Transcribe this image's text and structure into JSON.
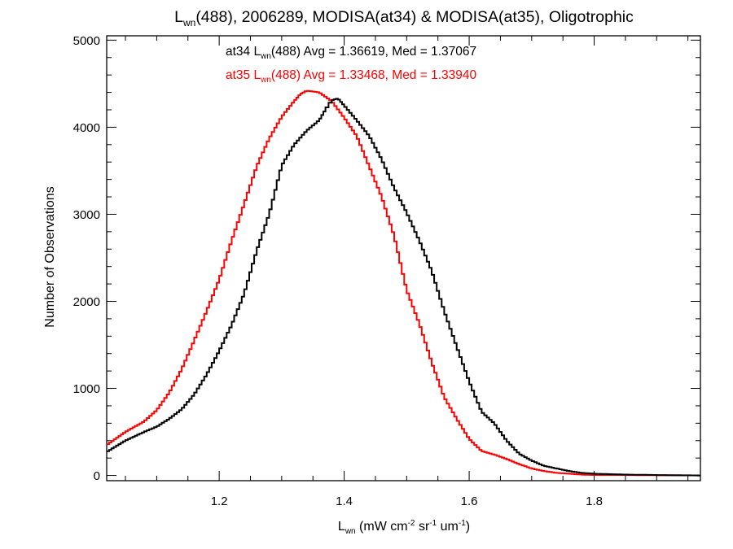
{
  "chart_data": {
    "type": "line",
    "title": {
      "prefix": "L",
      "sub": "wn",
      "rest": "(488), 2006289, MODISA(at34) & MODISA(at35), Oligotrophic"
    },
    "xlabel": {
      "prefix": "L",
      "sub": "wn",
      "rest": " (mW cm",
      "sup1": "-2",
      "mid1": " sr",
      "sup2": "-1",
      "mid2": " um",
      "sup3": "-1",
      "end": ")"
    },
    "ylabel": "Number of Observations",
    "xlim": [
      1.02,
      1.97
    ],
    "ylim": [
      -60,
      5050
    ],
    "xticks": [
      1.2,
      1.4,
      1.6,
      1.8
    ],
    "xtick_labels": [
      "1.2",
      "1.4",
      "1.6",
      "1.8"
    ],
    "yticks": [
      0,
      1000,
      2000,
      3000,
      4000,
      5000
    ],
    "ytick_labels": [
      "0",
      "1000",
      "2000",
      "3000",
      "4000",
      "5000"
    ],
    "grid": false,
    "legend_position": "top-center",
    "series": [
      {
        "color": "#000000",
        "legend": {
          "prefix": "at34 L",
          "sub": "wn",
          "rest": "(488) Avg = 1.36619, Med = 1.37067"
        },
        "x": [
          1.02,
          1.05,
          1.08,
          1.1,
          1.12,
          1.14,
          1.16,
          1.18,
          1.2,
          1.22,
          1.24,
          1.26,
          1.28,
          1.3,
          1.32,
          1.34,
          1.36,
          1.37,
          1.38,
          1.39,
          1.4,
          1.42,
          1.44,
          1.46,
          1.48,
          1.5,
          1.52,
          1.54,
          1.56,
          1.58,
          1.6,
          1.62,
          1.64,
          1.66,
          1.68,
          1.7,
          1.72,
          1.74,
          1.76,
          1.78,
          1.8,
          1.85,
          1.9,
          1.97
        ],
        "y": [
          270,
          400,
          500,
          560,
          650,
          760,
          930,
          1160,
          1430,
          1730,
          2090,
          2580,
          3000,
          3560,
          3800,
          3960,
          4080,
          4200,
          4310,
          4330,
          4250,
          4080,
          3900,
          3630,
          3300,
          3020,
          2700,
          2350,
          1890,
          1480,
          1080,
          730,
          600,
          400,
          250,
          170,
          110,
          80,
          50,
          30,
          20,
          10,
          5,
          0
        ]
      },
      {
        "color": "#ff0000",
        "legend": {
          "prefix": "at35 L",
          "sub": "wn",
          "rest": "(488) Avg = 1.33468, Med = 1.33940"
        },
        "x": [
          1.02,
          1.05,
          1.08,
          1.1,
          1.12,
          1.14,
          1.16,
          1.18,
          1.2,
          1.22,
          1.24,
          1.26,
          1.28,
          1.3,
          1.32,
          1.33,
          1.34,
          1.36,
          1.38,
          1.4,
          1.42,
          1.44,
          1.46,
          1.48,
          1.5,
          1.52,
          1.54,
          1.56,
          1.58,
          1.6,
          1.62,
          1.64,
          1.66,
          1.68,
          1.7,
          1.72,
          1.74,
          1.76,
          1.78,
          1.8,
          1.85,
          1.9,
          1.97
        ],
        "y": [
          350,
          500,
          620,
          750,
          950,
          1220,
          1550,
          1890,
          2250,
          2700,
          3120,
          3550,
          3870,
          4120,
          4300,
          4380,
          4420,
          4400,
          4300,
          4110,
          3900,
          3550,
          3200,
          2750,
          2130,
          1750,
          1300,
          900,
          650,
          420,
          280,
          240,
          190,
          130,
          80,
          50,
          30,
          20,
          10,
          5,
          5,
          2,
          0
        ]
      }
    ]
  }
}
